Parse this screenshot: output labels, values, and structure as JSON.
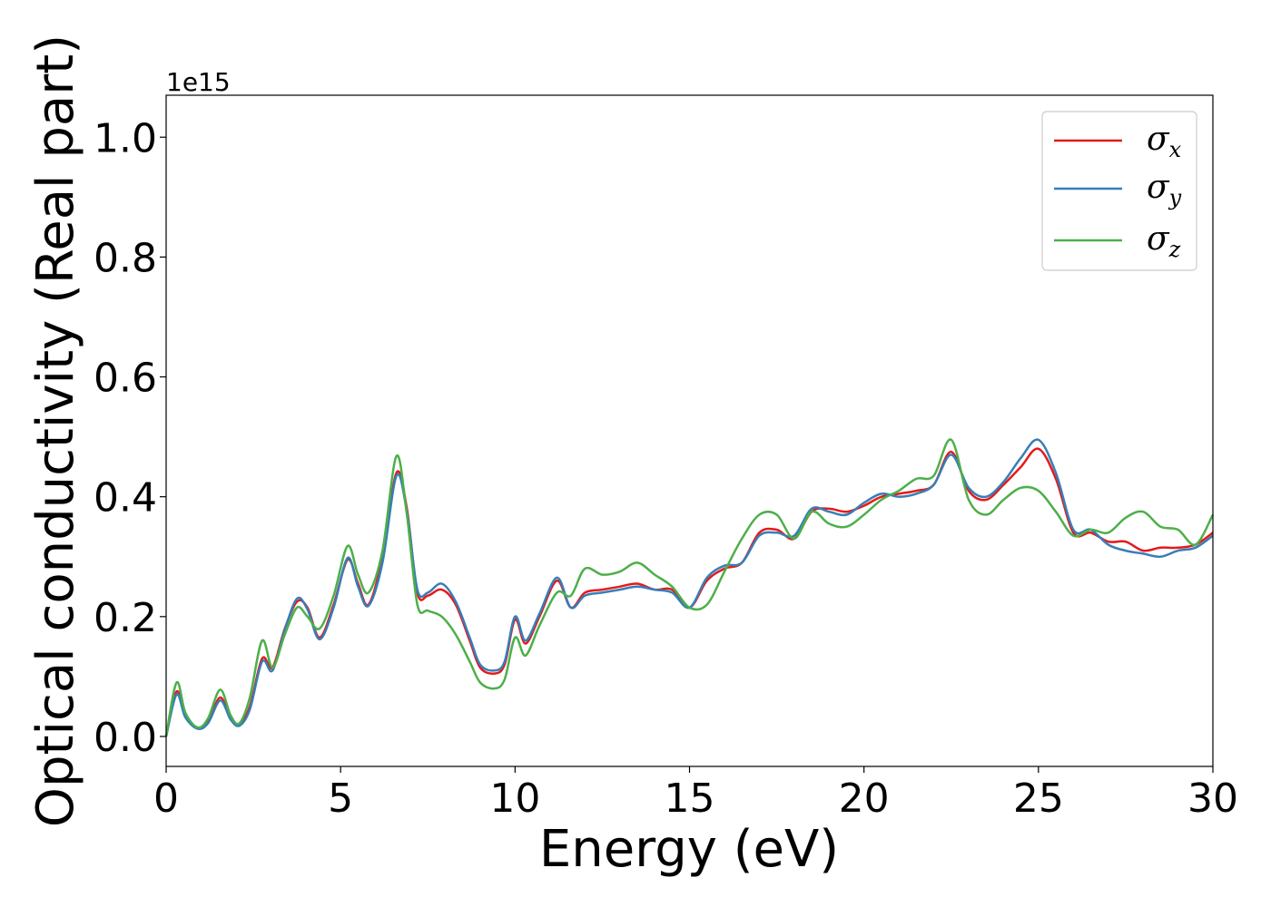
{
  "chart_data": {
    "type": "line",
    "xlabel": "Energy (eV)",
    "ylabel": "Optical conductivity (Real part)",
    "y_offset_text": "1e15",
    "xlim": [
      0,
      30
    ],
    "ylim": [
      -0.05,
      1.07
    ],
    "xticks": [
      0,
      5,
      10,
      15,
      20,
      25,
      30
    ],
    "xtick_labels": [
      "0",
      "5",
      "10",
      "15",
      "20",
      "25",
      "30"
    ],
    "yticks": [
      0.0,
      0.2,
      0.4,
      0.6,
      0.8,
      1.0
    ],
    "ytick_labels": [
      "0.0",
      "0.2",
      "0.4",
      "0.6",
      "0.8",
      "1.0"
    ],
    "grid": false,
    "legend_position": "top-right",
    "series": [
      {
        "name": "σx",
        "symbol": "σ",
        "subscript": "x",
        "color": "#e41a1c",
        "x": [
          0,
          0.3,
          0.55,
          0.9,
          1.2,
          1.55,
          1.85,
          2.1,
          2.4,
          2.75,
          3.05,
          3.4,
          3.75,
          4.05,
          4.4,
          4.8,
          5.2,
          5.5,
          5.8,
          6.2,
          6.6,
          6.9,
          7.2,
          7.5,
          7.9,
          8.3,
          8.7,
          9.0,
          9.4,
          9.7,
          10.0,
          10.3,
          10.7,
          11.2,
          11.6,
          12.0,
          12.5,
          13.0,
          13.5,
          14.0,
          14.5,
          15.0,
          15.5,
          16.0,
          16.5,
          17.0,
          17.5,
          18.0,
          18.5,
          19.0,
          19.5,
          20.0,
          20.5,
          21.0,
          21.5,
          22.0,
          22.5,
          23.0,
          23.5,
          24.0,
          24.5,
          25.0,
          25.5,
          26.0,
          26.5,
          27.0,
          27.5,
          28.0,
          28.5,
          29.0,
          29.5,
          30.0
        ],
        "y": [
          0.0,
          0.075,
          0.035,
          0.015,
          0.025,
          0.065,
          0.03,
          0.02,
          0.05,
          0.13,
          0.115,
          0.18,
          0.225,
          0.215,
          0.165,
          0.22,
          0.295,
          0.255,
          0.22,
          0.3,
          0.44,
          0.38,
          0.24,
          0.235,
          0.245,
          0.22,
          0.16,
          0.115,
          0.105,
          0.12,
          0.195,
          0.155,
          0.2,
          0.26,
          0.215,
          0.24,
          0.245,
          0.25,
          0.255,
          0.245,
          0.245,
          0.215,
          0.26,
          0.28,
          0.29,
          0.34,
          0.345,
          0.33,
          0.375,
          0.38,
          0.375,
          0.385,
          0.4,
          0.405,
          0.41,
          0.42,
          0.475,
          0.41,
          0.395,
          0.42,
          0.45,
          0.48,
          0.43,
          0.34,
          0.34,
          0.325,
          0.325,
          0.31,
          0.315,
          0.315,
          0.32,
          0.34
        ]
      },
      {
        "name": "σy",
        "symbol": "σ",
        "subscript": "y",
        "color": "#377eb8",
        "x": [
          0,
          0.3,
          0.55,
          0.9,
          1.2,
          1.55,
          1.85,
          2.1,
          2.4,
          2.75,
          3.05,
          3.4,
          3.75,
          4.05,
          4.4,
          4.8,
          5.2,
          5.5,
          5.8,
          6.2,
          6.6,
          6.9,
          7.2,
          7.5,
          7.9,
          8.3,
          8.7,
          9.0,
          9.4,
          9.7,
          10.0,
          10.3,
          10.7,
          11.2,
          11.6,
          12.0,
          12.5,
          13.0,
          13.5,
          14.0,
          14.5,
          15.0,
          15.5,
          16.0,
          16.5,
          17.0,
          17.5,
          18.0,
          18.5,
          19.0,
          19.5,
          20.0,
          20.5,
          21.0,
          21.5,
          22.0,
          22.5,
          23.0,
          23.5,
          24.0,
          24.5,
          25.0,
          25.5,
          26.0,
          26.5,
          27.0,
          27.5,
          28.0,
          28.5,
          29.0,
          29.5,
          30.0
        ],
        "y": [
          0.0,
          0.07,
          0.032,
          0.013,
          0.022,
          0.06,
          0.028,
          0.018,
          0.045,
          0.125,
          0.11,
          0.178,
          0.23,
          0.212,
          0.162,
          0.215,
          0.298,
          0.25,
          0.218,
          0.29,
          0.435,
          0.375,
          0.245,
          0.24,
          0.255,
          0.225,
          0.165,
          0.12,
          0.11,
          0.125,
          0.2,
          0.16,
          0.205,
          0.265,
          0.215,
          0.235,
          0.24,
          0.245,
          0.25,
          0.245,
          0.24,
          0.215,
          0.265,
          0.285,
          0.29,
          0.335,
          0.34,
          0.335,
          0.38,
          0.375,
          0.37,
          0.39,
          0.405,
          0.4,
          0.405,
          0.42,
          0.47,
          0.415,
          0.4,
          0.425,
          0.465,
          0.495,
          0.44,
          0.345,
          0.345,
          0.32,
          0.31,
          0.305,
          0.3,
          0.31,
          0.315,
          0.335
        ]
      },
      {
        "name": "σz",
        "symbol": "σ",
        "subscript": "z",
        "color": "#4daf4a",
        "x": [
          0,
          0.3,
          0.55,
          0.9,
          1.2,
          1.55,
          1.85,
          2.1,
          2.4,
          2.75,
          3.05,
          3.4,
          3.75,
          4.05,
          4.4,
          4.8,
          5.2,
          5.5,
          5.8,
          6.2,
          6.6,
          6.9,
          7.2,
          7.5,
          7.9,
          8.3,
          8.7,
          9.0,
          9.4,
          9.7,
          10.0,
          10.3,
          10.7,
          11.2,
          11.6,
          12.0,
          12.5,
          13.0,
          13.5,
          14.0,
          14.5,
          15.0,
          15.5,
          16.0,
          16.5,
          17.0,
          17.5,
          18.0,
          18.5,
          19.0,
          19.5,
          20.0,
          20.5,
          21.0,
          21.5,
          22.0,
          22.5,
          23.0,
          23.5,
          24.0,
          24.5,
          25.0,
          25.5,
          26.0,
          26.5,
          27.0,
          27.5,
          28.0,
          28.5,
          29.0,
          29.5,
          30.0
        ],
        "y": [
          0.0,
          0.09,
          0.04,
          0.015,
          0.03,
          0.078,
          0.035,
          0.022,
          0.065,
          0.16,
          0.115,
          0.17,
          0.215,
          0.2,
          0.18,
          0.235,
          0.318,
          0.27,
          0.24,
          0.31,
          0.468,
          0.37,
          0.22,
          0.21,
          0.2,
          0.17,
          0.125,
          0.09,
          0.08,
          0.095,
          0.165,
          0.135,
          0.185,
          0.24,
          0.235,
          0.28,
          0.27,
          0.275,
          0.29,
          0.27,
          0.25,
          0.215,
          0.22,
          0.275,
          0.33,
          0.37,
          0.37,
          0.33,
          0.375,
          0.355,
          0.35,
          0.37,
          0.395,
          0.41,
          0.43,
          0.435,
          0.495,
          0.395,
          0.37,
          0.395,
          0.415,
          0.41,
          0.375,
          0.335,
          0.345,
          0.34,
          0.365,
          0.375,
          0.35,
          0.345,
          0.32,
          0.37
        ]
      }
    ]
  }
}
